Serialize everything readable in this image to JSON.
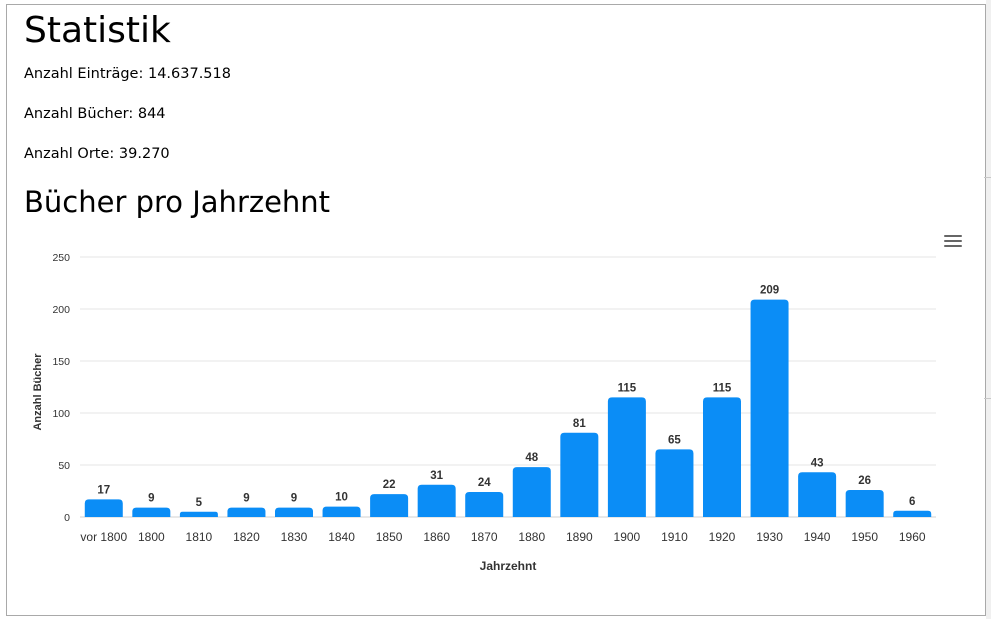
{
  "page": {
    "title": "Statistik",
    "stats": [
      {
        "label": "Anzahl Einträge: 14.637.518"
      },
      {
        "label": "Anzahl Bücher: 844"
      },
      {
        "label": "Anzahl Orte: 39.270"
      }
    ],
    "chart_heading": "Bücher pro Jahrzehnt"
  },
  "icons": {
    "menu": "hamburger-menu-icon"
  },
  "colors": {
    "bar": "#0b8df6",
    "grid": "#e6e6e6",
    "axis_text": "#333333"
  },
  "chart_data": {
    "type": "bar",
    "title": "",
    "categories": [
      "vor 1800",
      "1800",
      "1810",
      "1820",
      "1830",
      "1840",
      "1850",
      "1860",
      "1870",
      "1880",
      "1890",
      "1900",
      "1910",
      "1920",
      "1930",
      "1940",
      "1950",
      "1960"
    ],
    "values": [
      17,
      9,
      5,
      9,
      9,
      10,
      22,
      31,
      24,
      48,
      81,
      115,
      65,
      115,
      209,
      43,
      26,
      6
    ],
    "xlabel": "Jahrzehnt",
    "ylabel": "Anzahl Bücher",
    "ylim": [
      0,
      250
    ],
    "yticks": [
      0,
      50,
      100,
      150,
      200,
      250
    ],
    "grid": true,
    "legend": "none",
    "data_labels": true
  }
}
